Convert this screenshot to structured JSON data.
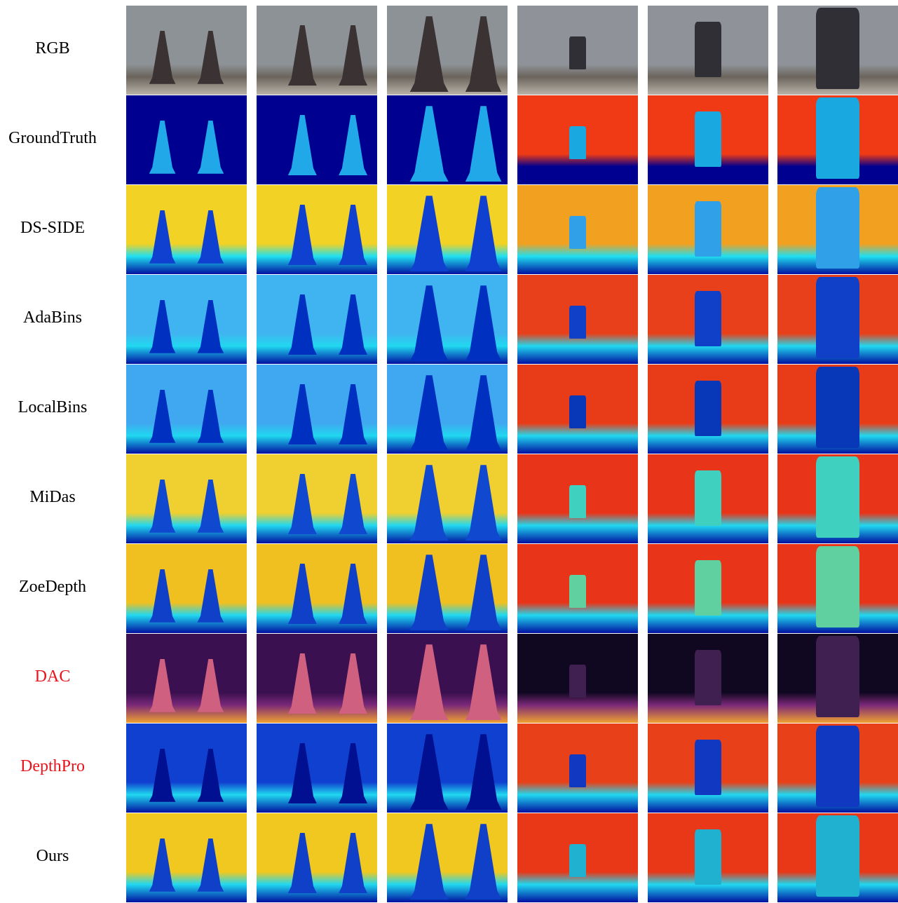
{
  "figure": {
    "rows": [
      {
        "label": "RGB",
        "color": "#000000"
      },
      {
        "label": "GroundTruth",
        "color": "#000000"
      },
      {
        "label": "DS-SIDE",
        "color": "#000000"
      },
      {
        "label": "AdaBins",
        "color": "#000000"
      },
      {
        "label": "LocalBins",
        "color": "#000000"
      },
      {
        "label": "MiDas",
        "color": "#000000"
      },
      {
        "label": "ZoeDepth",
        "color": "#000000"
      },
      {
        "label": "DAC",
        "color": "#e8141b"
      },
      {
        "label": "DepthPro",
        "color": "#e8141b"
      },
      {
        "label": "Ours",
        "color": "#000000"
      }
    ]
  }
}
